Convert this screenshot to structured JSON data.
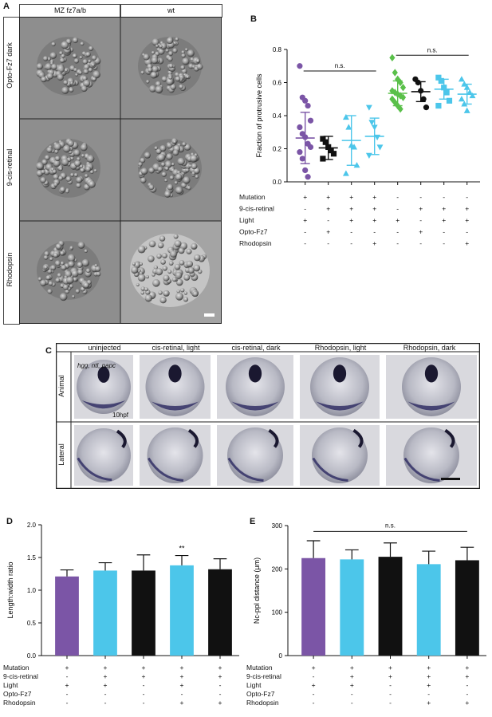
{
  "panels": {
    "a": {
      "letter": "A",
      "col_headers": [
        "MZ fz7a/b",
        "wt"
      ],
      "row_labels": [
        "Opto-Fz7 dark",
        "9-cis-retinal",
        "Rhodopsin"
      ]
    },
    "b": {
      "letter": "B"
    },
    "c": {
      "letter": "C",
      "col_headers": [
        "uninjected",
        "cis-retinal, light",
        "cis-retinal, dark",
        "Rhodopsin, light",
        "Rhodopsin, dark"
      ],
      "row_labels": [
        "Animal",
        "Lateral"
      ],
      "probe_label": "hgg, ntl, papc",
      "stage_label": "10hpf"
    },
    "d": {
      "letter": "D"
    },
    "e": {
      "letter": "E"
    }
  },
  "colors": {
    "purple": "#7b55a6",
    "black": "#111111",
    "cyan": "#4cc6ea",
    "green": "#5ac04a"
  },
  "chart_data": [
    {
      "id": "B",
      "type": "scatter",
      "ylabel": "Fraction of protrusive cells",
      "ylim": [
        0.0,
        0.8
      ],
      "yticks": [
        "0.0",
        "0.2",
        "0.4",
        "0.6",
        "0.8"
      ],
      "annotations": [
        {
          "text": "n.s.",
          "from_group": 1,
          "to_group": 4
        },
        {
          "text": "n.s.",
          "from_group": 5,
          "to_group": 8
        }
      ],
      "groups": [
        {
          "color": "purple",
          "marker": "circle",
          "mean": 0.265,
          "sd": 0.155,
          "points": [
            0.7,
            0.51,
            0.49,
            0.46,
            0.37,
            0.33,
            0.29,
            0.27,
            0.23,
            0.21,
            0.18,
            0.14,
            0.07,
            0.03
          ]
        },
        {
          "color": "black",
          "marker": "square",
          "mean": 0.205,
          "sd": 0.07,
          "points": [
            0.26,
            0.24,
            0.21,
            0.19,
            0.17,
            0.14
          ]
        },
        {
          "color": "cyan",
          "marker": "triangle",
          "mean": 0.25,
          "sd": 0.15,
          "points": [
            0.39,
            0.33,
            0.22,
            0.21,
            0.1,
            0.05
          ]
        },
        {
          "color": "cyan",
          "marker": "tri-down",
          "mean": 0.275,
          "sd": 0.11,
          "points": [
            0.45,
            0.36,
            0.33,
            0.27,
            0.21,
            0.16
          ]
        },
        {
          "color": "green",
          "marker": "diamond",
          "mean": 0.535,
          "sd": 0.075,
          "points": [
            0.75,
            0.66,
            0.62,
            0.6,
            0.57,
            0.55,
            0.54,
            0.53,
            0.52,
            0.51,
            0.5,
            0.48,
            0.46,
            0.44
          ]
        },
        {
          "color": "black",
          "marker": "circle",
          "mean": 0.545,
          "sd": 0.06,
          "points": [
            0.62,
            0.6,
            0.55,
            0.5,
            0.45
          ]
        },
        {
          "color": "cyan",
          "marker": "square",
          "mean": 0.56,
          "sd": 0.06,
          "points": [
            0.63,
            0.61,
            0.57,
            0.54,
            0.49,
            0.46
          ]
        },
        {
          "color": "cyan",
          "marker": "triangle",
          "mean": 0.53,
          "sd": 0.06,
          "points": [
            0.62,
            0.59,
            0.57,
            0.54,
            0.52,
            0.5,
            0.47,
            0.43
          ]
        }
      ],
      "conditions": {
        "labels": [
          "Mutation",
          "9-cis-retinal",
          "Light",
          "Opto-Fz7",
          "Rhodopsin"
        ],
        "rows": [
          [
            "+",
            "+",
            "+",
            "+",
            "-",
            "-",
            "-",
            "-"
          ],
          [
            "-",
            "+",
            "+",
            "+",
            "-",
            "+",
            "+",
            "+"
          ],
          [
            "+",
            "-",
            "+",
            "+",
            "+",
            "-",
            "+",
            "+"
          ],
          [
            "-",
            "+",
            "-",
            "-",
            "-",
            "+",
            "-",
            "-"
          ],
          [
            "-",
            "-",
            "-",
            "+",
            "-",
            "-",
            "-",
            "+"
          ]
        ]
      }
    },
    {
      "id": "D",
      "type": "bar",
      "ylabel": "Length:width ratio",
      "ylim": [
        0.0,
        2.0
      ],
      "yticks": [
        "0.0",
        "0.5",
        "1.0",
        "1.5",
        "2.0"
      ],
      "values": [
        1.21,
        1.3,
        1.3,
        1.38,
        1.32
      ],
      "errors": [
        0.1,
        0.12,
        0.24,
        0.15,
        0.16
      ],
      "colors": [
        "purple",
        "cyan",
        "black",
        "cyan",
        "black"
      ],
      "annotations": [
        {
          "text": "**",
          "bar": 3
        }
      ],
      "conditions": {
        "labels": [
          "Mutation",
          "9-cis-retinal",
          "Light",
          "Opto-Fz7",
          "Rhodopsin"
        ],
        "rows": [
          [
            "+",
            "+",
            "+",
            "+",
            "+"
          ],
          [
            "-",
            "+",
            "+",
            "+",
            "+"
          ],
          [
            "+",
            "+",
            "-",
            "+",
            "-"
          ],
          [
            "-",
            "-",
            "-",
            "-",
            "-"
          ],
          [
            "-",
            "-",
            "-",
            "+",
            "+"
          ]
        ]
      }
    },
    {
      "id": "E",
      "type": "bar",
      "ylabel": "Nc-ppl distance (μm)",
      "ylim": [
        0,
        300
      ],
      "yticks": [
        "0",
        "100",
        "200",
        "300"
      ],
      "values": [
        225,
        222,
        228,
        211,
        220
      ],
      "errors": [
        40,
        22,
        32,
        30,
        30
      ],
      "colors": [
        "purple",
        "cyan",
        "black",
        "cyan",
        "black"
      ],
      "annotations": [
        {
          "text": "n.s.",
          "from_bar": 0,
          "to_bar": 4
        }
      ],
      "conditions": {
        "labels": [
          "Mutation",
          "9-cis-retinal",
          "Light",
          "Opto-Fz7",
          "Rhodopsin"
        ],
        "rows": [
          [
            "+",
            "+",
            "+",
            "+",
            "+"
          ],
          [
            "-",
            "+",
            "+",
            "+",
            "+"
          ],
          [
            "+",
            "+",
            "-",
            "+",
            "-"
          ],
          [
            "-",
            "-",
            "-",
            "-",
            "-"
          ],
          [
            "-",
            "-",
            "-",
            "+",
            "+"
          ]
        ]
      }
    }
  ]
}
